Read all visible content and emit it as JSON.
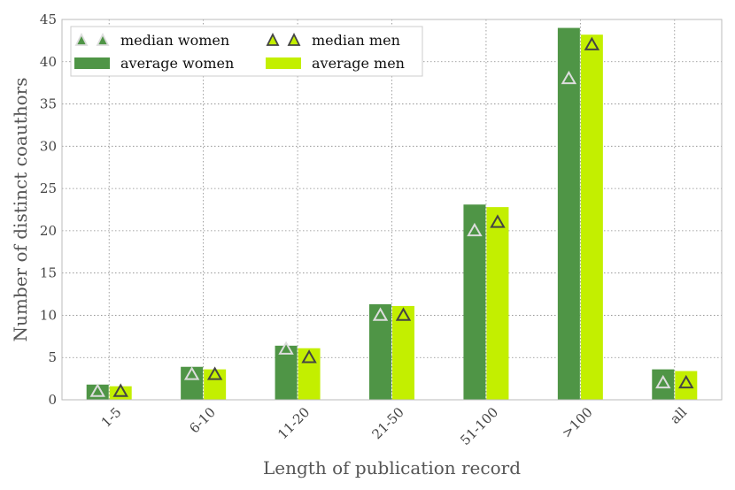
{
  "chart_data": {
    "type": "bar",
    "title": "",
    "xlabel": "Length of publication record",
    "ylabel": "Number of distinct coauthors",
    "categories": [
      "1-5",
      "6-10",
      "11-20",
      "21-50",
      "51-100",
      ">100",
      "all"
    ],
    "ylim": [
      0,
      45
    ],
    "yticks": [
      0,
      5,
      10,
      15,
      20,
      25,
      30,
      35,
      40,
      45
    ],
    "grid": true,
    "legend_position": "top-left",
    "series": [
      {
        "name": "average women",
        "kind": "bar",
        "color": "#4f9546",
        "values": [
          1.8,
          3.9,
          6.4,
          11.3,
          23.1,
          44.0,
          3.6
        ]
      },
      {
        "name": "average men",
        "kind": "bar",
        "color": "#c3ef00",
        "values": [
          1.6,
          3.6,
          6.1,
          11.1,
          22.8,
          43.2,
          3.4
        ]
      },
      {
        "name": "median women",
        "kind": "marker",
        "marker": "triangle",
        "color": "#4f9546",
        "values": [
          1,
          3,
          6,
          10,
          20,
          38,
          2
        ]
      },
      {
        "name": "median men",
        "kind": "marker",
        "marker": "triangle",
        "color": "#c3ef00",
        "values": [
          1,
          3,
          5,
          10,
          21,
          42,
          2
        ]
      }
    ]
  }
}
